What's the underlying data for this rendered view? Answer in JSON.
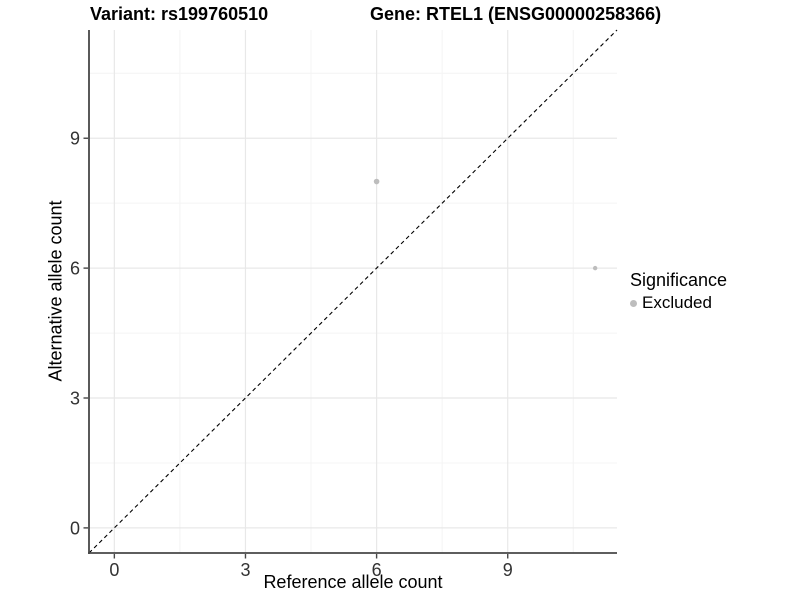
{
  "chart_data": {
    "type": "scatter",
    "title_left": "Variant: rs199760510",
    "title_right": "Gene: RTEL1 (ENSG00000258366)",
    "xlabel": "Reference allele count",
    "ylabel": "Alternative allele count",
    "xlim": [
      -0.58,
      11.5
    ],
    "ylim": [
      -0.58,
      11.5
    ],
    "xticks": [
      0,
      3,
      6,
      9
    ],
    "yticks": [
      0,
      3,
      6,
      9
    ],
    "xticks_minor": [
      1.5,
      4.5,
      7.5,
      10.5
    ],
    "yticks_minor": [
      1.5,
      4.5,
      7.5,
      10.5
    ],
    "grid": true,
    "identity_line": {
      "style": "dashed",
      "color": "#000000"
    },
    "points": [
      {
        "x": 6,
        "y": 8,
        "series": "Excluded",
        "radius": 2.8
      },
      {
        "x": 11,
        "y": 6,
        "series": "Excluded",
        "radius": 2.2
      }
    ],
    "legend": {
      "title": "Significance",
      "position": "right",
      "entries": [
        {
          "label": "Excluded",
          "color": "#bdbdbd"
        }
      ]
    },
    "colors": {
      "point": "#bdbdbd",
      "grid_major": "#e8e8e8",
      "grid_minor": "#f4f4f4",
      "axis": "#474747",
      "tick_text": "#333333",
      "background": "#ffffff"
    }
  }
}
